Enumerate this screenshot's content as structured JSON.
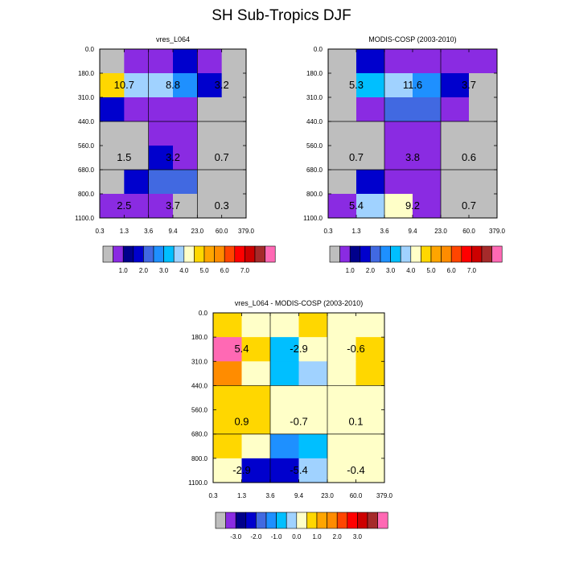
{
  "title": "SH Sub-Tropics DJF",
  "chart_data": [
    {
      "type": "heatmap",
      "title": "vres_L064",
      "x_ticks": [
        "0.3",
        "1.3",
        "3.6",
        "9.4",
        "23.0",
        "60.0",
        "379.0"
      ],
      "y_ticks": [
        "0.0",
        "180.0",
        "310.0",
        "440.0",
        "560.0",
        "680.0",
        "800.0",
        "1100.0"
      ],
      "cells": [
        [
          0,
          1,
          1,
          3,
          1,
          0
        ],
        [
          9,
          7,
          7,
          5,
          3,
          0
        ],
        [
          3,
          1,
          1,
          1,
          0,
          0
        ],
        [
          0,
          0,
          1,
          1,
          0,
          0
        ],
        [
          0,
          0,
          3,
          1,
          0,
          0
        ],
        [
          0,
          3,
          4,
          4,
          0,
          0
        ],
        [
          1,
          1,
          1,
          0,
          0,
          0
        ]
      ],
      "annotations": [
        {
          "row": 1,
          "col": 0.5,
          "text": "10.7"
        },
        {
          "row": 1,
          "col": 2.5,
          "text": "8.8"
        },
        {
          "row": 1,
          "col": 4.5,
          "text": "3.2"
        },
        {
          "row": 4,
          "col": 0.5,
          "text": "1.5"
        },
        {
          "row": 4,
          "col": 2.5,
          "text": "3.2"
        },
        {
          "row": 4,
          "col": 4.5,
          "text": "0.7"
        },
        {
          "row": 6,
          "col": 0.5,
          "text": "2.5"
        },
        {
          "row": 6,
          "col": 2.5,
          "text": "3.7"
        },
        {
          "row": 6,
          "col": 4.5,
          "text": "0.3"
        }
      ]
    },
    {
      "type": "heatmap",
      "title": "MODIS-COSP (2003-2010)",
      "x_ticks": [
        "0.3",
        "1.3",
        "3.6",
        "9.4",
        "23.0",
        "60.0",
        "379.0"
      ],
      "y_ticks": [
        "0.0",
        "180.0",
        "310.0",
        "440.0",
        "560.0",
        "680.0",
        "800.0",
        "1100.0"
      ],
      "cells": [
        [
          0,
          3,
          1,
          1,
          1,
          1
        ],
        [
          0,
          6,
          7,
          5,
          3,
          0
        ],
        [
          0,
          1,
          4,
          4,
          1,
          0
        ],
        [
          0,
          0,
          1,
          1,
          0,
          0
        ],
        [
          0,
          0,
          1,
          1,
          0,
          0
        ],
        [
          0,
          3,
          1,
          1,
          0,
          0
        ],
        [
          1,
          7,
          8,
          1,
          0,
          0
        ]
      ],
      "annotations": [
        {
          "row": 1,
          "col": 0.5,
          "text": "5.3"
        },
        {
          "row": 1,
          "col": 2.5,
          "text": "11.6"
        },
        {
          "row": 1,
          "col": 4.5,
          "text": "3.7"
        },
        {
          "row": 4,
          "col": 0.5,
          "text": "0.7"
        },
        {
          "row": 4,
          "col": 2.5,
          "text": "3.8"
        },
        {
          "row": 4,
          "col": 4.5,
          "text": "0.6"
        },
        {
          "row": 6,
          "col": 0.5,
          "text": "5.4"
        },
        {
          "row": 6,
          "col": 2.5,
          "text": "9.2"
        },
        {
          "row": 6,
          "col": 4.5,
          "text": "0.7"
        }
      ]
    },
    {
      "type": "heatmap",
      "title": "vres_L064 - MODIS-COSP (2003-2010)",
      "x_ticks": [
        "0.3",
        "1.3",
        "3.6",
        "9.4",
        "23.0",
        "60.0",
        "379.0"
      ],
      "y_ticks": [
        "0.0",
        "180.0",
        "310.0",
        "440.0",
        "560.0",
        "680.0",
        "800.0",
        "1100.0"
      ],
      "cells": [
        [
          9,
          8,
          8,
          9,
          8,
          8
        ],
        [
          16,
          9,
          6,
          8,
          8,
          9
        ],
        [
          11,
          8,
          6,
          7,
          8,
          9
        ],
        [
          9,
          9,
          8,
          8,
          8,
          8
        ],
        [
          9,
          9,
          8,
          8,
          8,
          8
        ],
        [
          9,
          8,
          5,
          6,
          8,
          8
        ],
        [
          8,
          3,
          3,
          7,
          8,
          8
        ]
      ],
      "annotations": [
        {
          "row": 1,
          "col": 0.5,
          "text": "5.4"
        },
        {
          "row": 1,
          "col": 2.5,
          "text": "-2.9"
        },
        {
          "row": 1,
          "col": 4.5,
          "text": "-0.6"
        },
        {
          "row": 4,
          "col": 0.5,
          "text": "0.9"
        },
        {
          "row": 4,
          "col": 2.5,
          "text": "-0.7"
        },
        {
          "row": 4,
          "col": 4.5,
          "text": "0.1"
        },
        {
          "row": 6,
          "col": 0.5,
          "text": "-2.9"
        },
        {
          "row": 6,
          "col": 2.5,
          "text": "-5.4"
        },
        {
          "row": 6,
          "col": 4.5,
          "text": "-0.4"
        }
      ]
    }
  ],
  "colorbar_palette": [
    "#bebebe",
    "#8a2be2",
    "#00008b",
    "#0000cd",
    "#4169e1",
    "#1e90ff",
    "#00bfff",
    "#a0d2ff",
    "#ffffc8",
    "#ffd700",
    "#ffa500",
    "#ff8c00",
    "#ff4500",
    "#ff0000",
    "#cd0000",
    "#a52a2a",
    "#ff69b4"
  ],
  "colorbars": [
    {
      "name": "vres-colorbar",
      "labels": [
        "1.0",
        "2.0",
        "3.0",
        "4.0",
        "5.0",
        "6.0",
        "7.0"
      ]
    },
    {
      "name": "modis-colorbar",
      "labels": [
        "1.0",
        "2.0",
        "3.0",
        "4.0",
        "5.0",
        "6.0",
        "7.0"
      ]
    },
    {
      "name": "diff-colorbar",
      "labels": [
        "-3.0",
        "-2.0",
        "-1.0",
        "0.0",
        "1.0",
        "2.0",
        "3.0"
      ]
    }
  ]
}
